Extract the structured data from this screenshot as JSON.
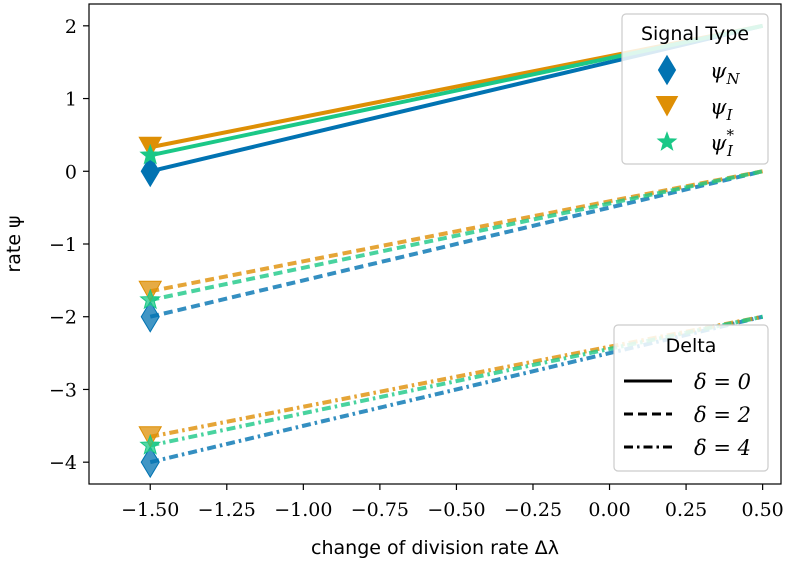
{
  "chart_data": {
    "type": "line",
    "xlabel": "change of division rate Δλ",
    "ylabel": "rate ψ",
    "xlim": [
      -1.7,
      0.56
    ],
    "ylim": [
      -4.3,
      2.3
    ],
    "xticks": [
      -1.5,
      -1.25,
      -1.0,
      -0.75,
      -0.5,
      -0.25,
      0.0,
      0.25,
      0.5
    ],
    "xtick_labels": [
      "−1.50",
      "−1.25",
      "−1.00",
      "−0.75",
      "−0.50",
      "−0.25",
      "0.00",
      "0.25",
      "0.50"
    ],
    "yticks": [
      -4,
      -3,
      -2,
      -1,
      0,
      1,
      2
    ],
    "ytick_labels": [
      "−4",
      "−3",
      "−2",
      "−1",
      "0",
      "1",
      "2"
    ],
    "grid": false,
    "x": [
      -1.5,
      0.5
    ],
    "series": [
      {
        "signal": "ψN",
        "delta": "δ = 0",
        "color": "#0173b2",
        "marker": "diamond",
        "values": [
          0.0,
          2.0
        ]
      },
      {
        "signal": "ψI",
        "delta": "δ = 0",
        "color": "#de8f05",
        "marker": "triangle-down",
        "values": [
          0.33,
          2.0
        ]
      },
      {
        "signal": "ψ*I",
        "delta": "δ = 0",
        "color": "#1bc887",
        "marker": "star",
        "values": [
          0.22,
          2.0
        ]
      },
      {
        "signal": "ψN",
        "delta": "δ = 2",
        "color": "#0173b2",
        "marker": "diamond",
        "values": [
          -2.0,
          0.0
        ]
      },
      {
        "signal": "ψI",
        "delta": "δ = 2",
        "color": "#de8f05",
        "marker": "triangle-down",
        "values": [
          -1.65,
          0.0
        ]
      },
      {
        "signal": "ψ*I",
        "delta": "δ = 2",
        "color": "#1bc887",
        "marker": "star",
        "values": [
          -1.77,
          0.0
        ]
      },
      {
        "signal": "ψN",
        "delta": "δ = 4",
        "color": "#0173b2",
        "marker": "diamond",
        "values": [
          -4.0,
          -2.0
        ]
      },
      {
        "signal": "ψI",
        "delta": "δ = 4",
        "color": "#de8f05",
        "marker": "triangle-down",
        "values": [
          -3.65,
          -2.0
        ]
      },
      {
        "signal": "ψ*I",
        "delta": "δ = 4",
        "color": "#1bc887",
        "marker": "star",
        "values": [
          -3.77,
          -2.0
        ]
      }
    ],
    "legends": [
      {
        "title": "Signal Type",
        "placement": "upper-right",
        "entries": [
          {
            "label": "ψN",
            "main": "ψ",
            "sub": "N",
            "sup": "",
            "color": "#0173b2",
            "marker": "diamond"
          },
          {
            "label": "ψI",
            "main": "ψ",
            "sub": "I",
            "sup": "",
            "color": "#de8f05",
            "marker": "triangle-down"
          },
          {
            "label": "ψ*I",
            "main": "ψ",
            "sub": "I",
            "sup": "*",
            "color": "#1bc887",
            "marker": "star"
          }
        ]
      },
      {
        "title": "Delta",
        "placement": "lower-right",
        "entries": [
          {
            "label": "δ = 0",
            "dash": "solid"
          },
          {
            "label": "δ = 2",
            "dash": "dashed"
          },
          {
            "label": "δ = 4",
            "dash": "dashdot"
          }
        ]
      }
    ]
  }
}
